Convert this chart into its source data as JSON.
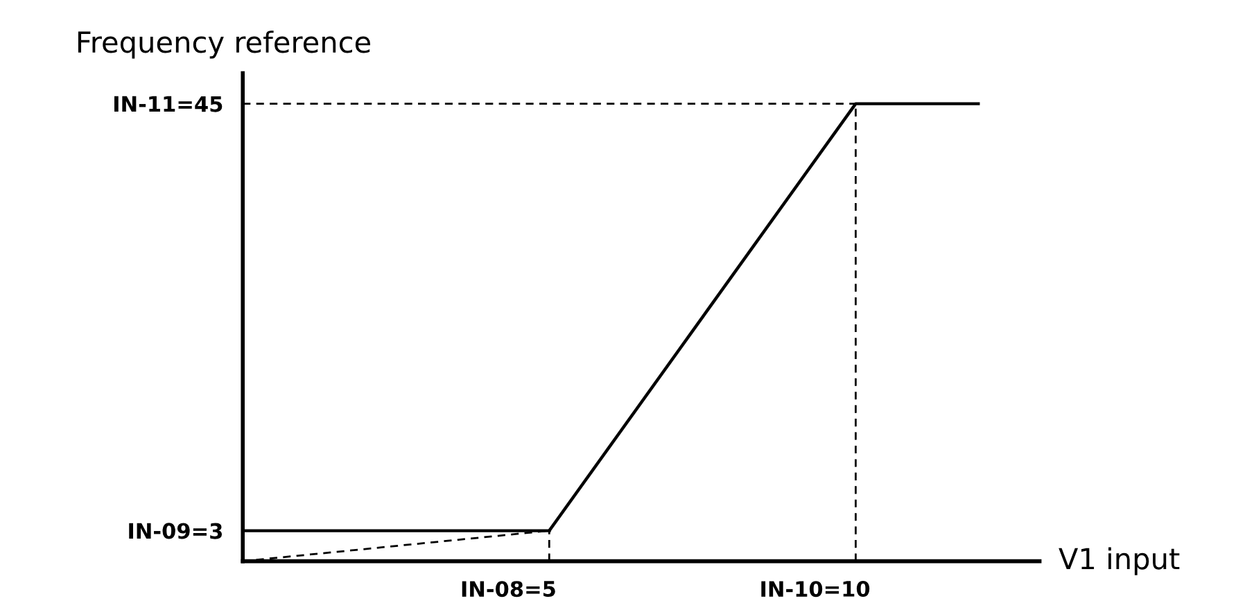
{
  "chart_data": {
    "type": "line",
    "xlabel": "V1 input",
    "ylabel": "Frequency reference",
    "xlim": [
      0,
      13
    ],
    "ylim": [
      0,
      48
    ],
    "xticks": [
      5,
      10
    ],
    "yticks": [
      3,
      45
    ],
    "annotations": [
      {
        "text": "IN-08=",
        "x": 5,
        "y": 0
      },
      {
        "text": "IN-10=",
        "x": 10,
        "y": 0
      },
      {
        "text": "IN-09=",
        "x": 0,
        "y": 3
      },
      {
        "text": "IN-11=",
        "x": 0,
        "y": 45
      }
    ],
    "grid": false,
    "legend": false,
    "marker": "none",
    "series": [
      {
        "color": "#000000",
        "line_style": "solid",
        "x": [
          5,
          10,
          12
        ],
        "values": [
          3,
          45,
          45
        ]
      },
      {
        "color": "#000000",
        "line_style": "dashed",
        "x": [
          0,
          5
        ],
        "values": [
          0,
          3
        ]
      },
      {
        "color": "#000000",
        "line_style": "solid",
        "x": [
          0,
          5
        ],
        "values": [
          3,
          3
        ]
      },
      {
        "color": "#000000",
        "line_style": "dashed",
        "x": [
          5,
          5
        ],
        "values": [
          0,
          3
        ]
      },
      {
        "color": "#000000",
        "line_style": "dashed",
        "x": [
          10,
          10
        ],
        "values": [
          0,
          45
        ]
      },
      {
        "color": "#000000",
        "line_style": "dashed",
        "x": [
          0,
          10
        ],
        "values": [
          45,
          45
        ]
      }
    ]
  }
}
